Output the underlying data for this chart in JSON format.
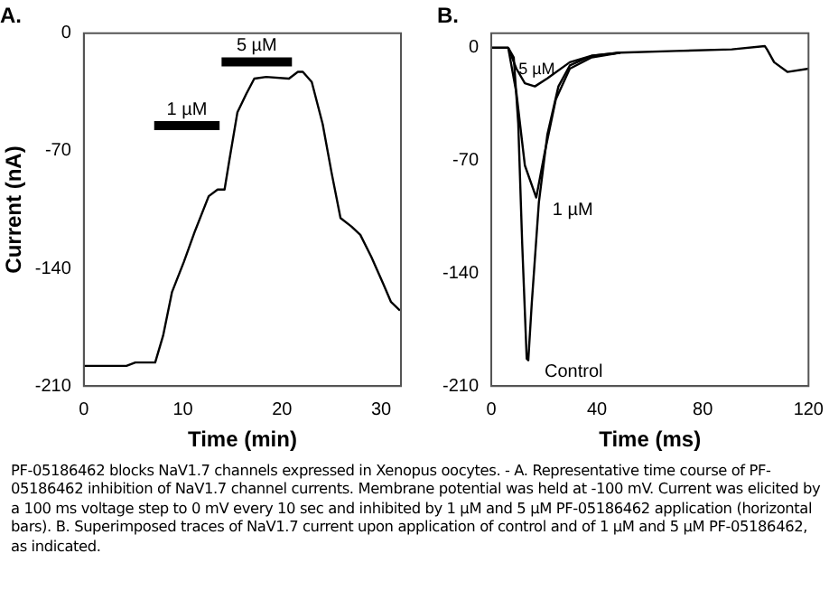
{
  "chart_data": [
    {
      "type": "line",
      "title": "A.",
      "xlabel": "Time (min)",
      "ylabel": "Current (nA)",
      "xlim": [
        0,
        32
      ],
      "xticks": [
        0,
        10,
        20,
        30
      ],
      "ylim": [
        -210,
        0
      ],
      "yticks": [
        -210,
        -140,
        -70,
        0
      ],
      "grid": false,
      "legend": false,
      "marker": "none",
      "series": [
        {
          "color": "#000000",
          "x": [
            0,
            4.3,
            5.2,
            7.2,
            8.0,
            8.9,
            10.1,
            11.2,
            12.6,
            13.5,
            14.2,
            14.7,
            15.5,
            16.4,
            17.2,
            18.4,
            20.7,
            21.6,
            22.1,
            23.0,
            24.1,
            25.0,
            25.9,
            27.0,
            27.9,
            29.0,
            30.2,
            31.0,
            31.9
          ],
          "values": [
            -198,
            -198,
            -196,
            -196,
            -180,
            -154,
            -136,
            -118,
            -97,
            -93,
            -93,
            -75,
            -47,
            -36,
            -27,
            -26,
            -27,
            -23,
            -23,
            -29,
            -54,
            -83,
            -110,
            -115,
            -120,
            -133,
            -149,
            -160,
            -165
          ]
        },
        {
          "name": "1 µM",
          "color": "#000000",
          "x": [
            7.1,
            13.7
          ],
          "values": [
            -55,
            -55
          ]
        },
        {
          "name": "5 µM",
          "color": "#000000",
          "x": [
            13.9,
            21.0
          ],
          "values": [
            -17,
            -17
          ]
        }
      ],
      "annotations": [
        "PF-05186462 blocks NaV1.7 channels expressed in Xenopus oocytes. - A. Representative time course of PF-05186462 inhibition of NaV1.7 channel currents. Membrane potential was held at -100 mV. Current was elicited by a 100 ms voltage step to 0 mV every 10 sec and inhibited by 1 µM and 5 µM PF-05186462 application (horizontal bars). B. Superimposed traces of NaV1.7 current upon application of control and of 1 µM and 5 µM PF-05186462, as indicated."
      ]
    },
    {
      "type": "line",
      "title": "B.",
      "xlabel": "Time (ms)",
      "xlim": [
        0,
        120
      ],
      "xticks": [
        0,
        40,
        80,
        120
      ],
      "ylim": [
        -210,
        9
      ],
      "yticks": [
        -210,
        -140,
        -70,
        0
      ],
      "grid": false,
      "legend": false,
      "marker": "none",
      "series": [
        {
          "name": "Control",
          "color": "#000000",
          "x": [
            0,
            6.4,
            8.5,
            10.2,
            11.7,
            13.4,
            14,
            15.3,
            18,
            21.2,
            25.4,
            29.7,
            38,
            48.8,
            70,
            91,
            103.5,
            104.3,
            107,
            112,
            120
          ],
          "values": [
            0,
            0,
            -6,
            -47,
            -122,
            -193,
            -194,
            -159,
            -96,
            -54,
            -24,
            -11,
            -5,
            -3,
            -2,
            -1,
            1,
            -1,
            -9,
            -15,
            -13
          ]
        },
        {
          "name": "1 µM",
          "color": "#000000",
          "x": [
            0,
            6.4,
            9.5,
            12.7,
            17,
            20.1,
            24.4,
            29.7,
            38,
            48.8
          ],
          "values": [
            0,
            0,
            -28,
            -73,
            -93,
            -66,
            -32,
            -13,
            -6,
            -3
          ]
        },
        {
          "name": "5 µM",
          "color": "#000000",
          "x": [
            0,
            6.4,
            9.5,
            12.7,
            16.5,
            21.2,
            29.7,
            38,
            48.8
          ],
          "values": [
            0,
            0,
            -13,
            -22,
            -24,
            -19,
            -9,
            -5,
            -3
          ]
        }
      ]
    }
  ]
}
